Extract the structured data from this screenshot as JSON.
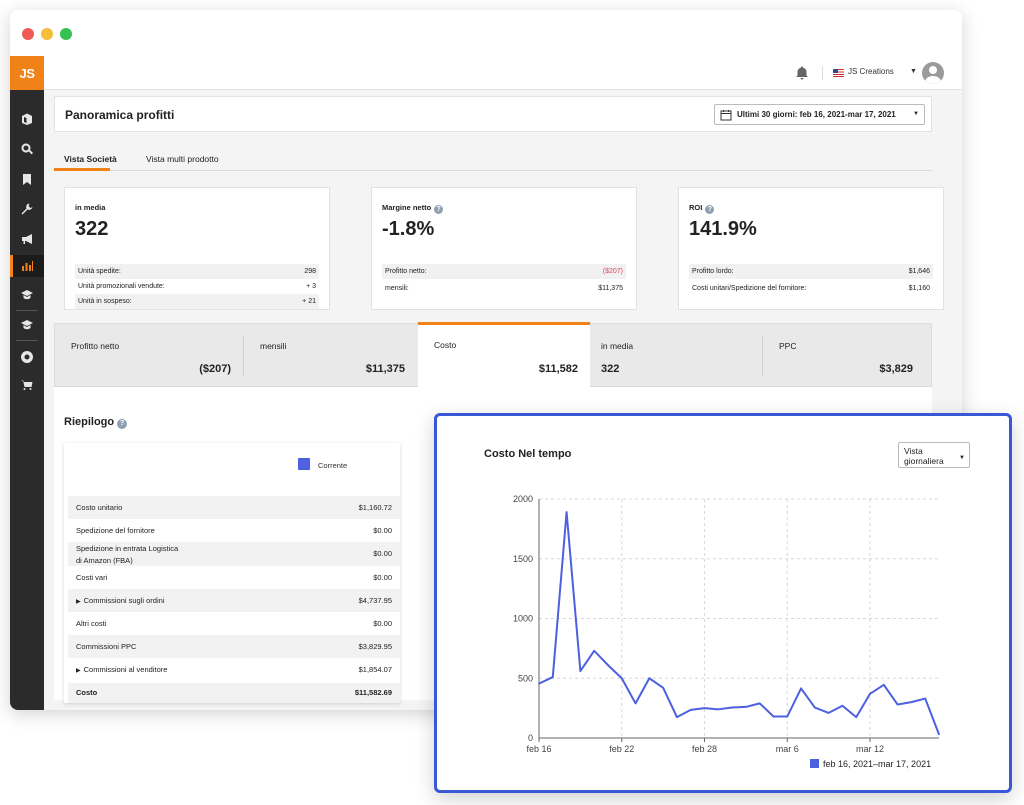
{
  "topbar": {
    "account": "JS Creations"
  },
  "sidebar": {
    "logo": "JS",
    "icons": [
      "box-icon",
      "search-icon",
      "bookmark-icon",
      "wrench-icon",
      "megaphone-icon",
      "bar-chart-icon",
      "graduation-cap-icon",
      "graduation-cap-icon",
      "aperture-icon",
      "cart-icon"
    ]
  },
  "header": {
    "title": "Panoramica profitti",
    "date_range": "Ultimi 30 giorni: feb 16, 2021-mar 17, 2021"
  },
  "tabs": [
    "Vista Società",
    "Vista multi prodotto"
  ],
  "kpis": [
    {
      "label": "in media",
      "value": "322",
      "rows": [
        {
          "label": "Unità spedite:",
          "value": "298"
        },
        {
          "label": "Unità promozionali vendute:",
          "value": "+ 3"
        },
        {
          "label": "Unità in sospeso:",
          "value": "+ 21"
        }
      ]
    },
    {
      "label": "Margine netto",
      "value": "-1.8%",
      "rows": [
        {
          "label": "Profitto netto:",
          "value": "($207)"
        },
        {
          "label": "mensili:",
          "value": "$11,375"
        }
      ]
    },
    {
      "label": "ROI",
      "value": "141.9%",
      "rows": [
        {
          "label": "Profitto lordo:",
          "value": "$1,646"
        },
        {
          "label": "Costi unitari/Spedizione del fornitore:",
          "value": "$1,160"
        }
      ]
    }
  ],
  "summary": [
    {
      "label": "Profitto netto",
      "value": "($207)"
    },
    {
      "label": "mensili",
      "value": "$11,375"
    },
    {
      "label": "Costo",
      "value": "$11,582"
    },
    {
      "label": "in media",
      "value": "322"
    },
    {
      "label": "PPC",
      "value": "$3,829"
    }
  ],
  "riepilogo": {
    "title": "Riepilogo",
    "legend": "Corrente",
    "rows": [
      {
        "label": "Costo unitario",
        "value": "$1,160.72"
      },
      {
        "label": "Spedizione del fornitore",
        "value": "$0.00"
      },
      {
        "label": "Spedizione in entrata Logistica",
        "label2": "di Amazon (FBA)",
        "value": "$0.00"
      },
      {
        "label": "Costi vari",
        "value": "$0.00"
      },
      {
        "label": "Commissioni sugli ordini",
        "value": "$4,737.95"
      },
      {
        "label": "Altri costi",
        "value": "$0.00"
      },
      {
        "label": "Commissioni PPC",
        "value": "$3,829.95"
      },
      {
        "label": "Commissioni al venditore",
        "value": "$1,854.07"
      },
      {
        "label": "Costo",
        "value": "$11,582.69"
      }
    ]
  },
  "popup": {
    "title": "Costo Nel tempo",
    "select_line1": "Vista",
    "select_line2": "giornaliera"
  },
  "colors": {
    "accent": "#f08218",
    "series": "#4c60e0",
    "negative": "#e0455a",
    "popup_border": "#3a57d6"
  },
  "chart_data": {
    "type": "line",
    "x": [
      "feb 16",
      "feb 17",
      "feb 18",
      "feb 19",
      "feb 20",
      "feb 21",
      "feb 22",
      "feb 23",
      "feb 24",
      "feb 25",
      "feb 26",
      "feb 27",
      "feb 28",
      "mar 1",
      "mar 2",
      "mar 3",
      "mar 4",
      "mar 5",
      "mar 6",
      "mar 7",
      "mar 8",
      "mar 9",
      "mar 10",
      "mar 11",
      "mar 12",
      "mar 13",
      "mar 14",
      "mar 15",
      "mar 16",
      "mar 17"
    ],
    "xticks": [
      "feb 16",
      "feb 22",
      "feb 28",
      "mar 6",
      "mar 12"
    ],
    "series": [
      {
        "name": "feb 16, 2021–mar 17, 2021",
        "values": [
          455,
          510,
          1890,
          560,
          730,
          610,
          500,
          290,
          500,
          420,
          175,
          235,
          250,
          240,
          255,
          260,
          290,
          180,
          180,
          415,
          255,
          210,
          270,
          175,
          370,
          445,
          280,
          300,
          330,
          30
        ]
      }
    ],
    "ylim": [
      0,
      2000
    ],
    "yticks": [
      0,
      500,
      1000,
      1500,
      2000
    ],
    "grid": true,
    "legend": "bottom-right"
  }
}
